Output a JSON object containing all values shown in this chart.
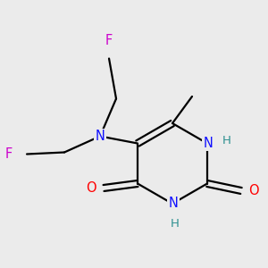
{
  "bg_color": "#ebebeb",
  "atom_colors": {
    "N": "#1010ff",
    "O": "#ff0000",
    "F": "#cc00cc",
    "C": "#000000",
    "H": "#2e9090"
  },
  "bond_color": "#000000",
  "lw": 1.6,
  "fs": 10.5
}
